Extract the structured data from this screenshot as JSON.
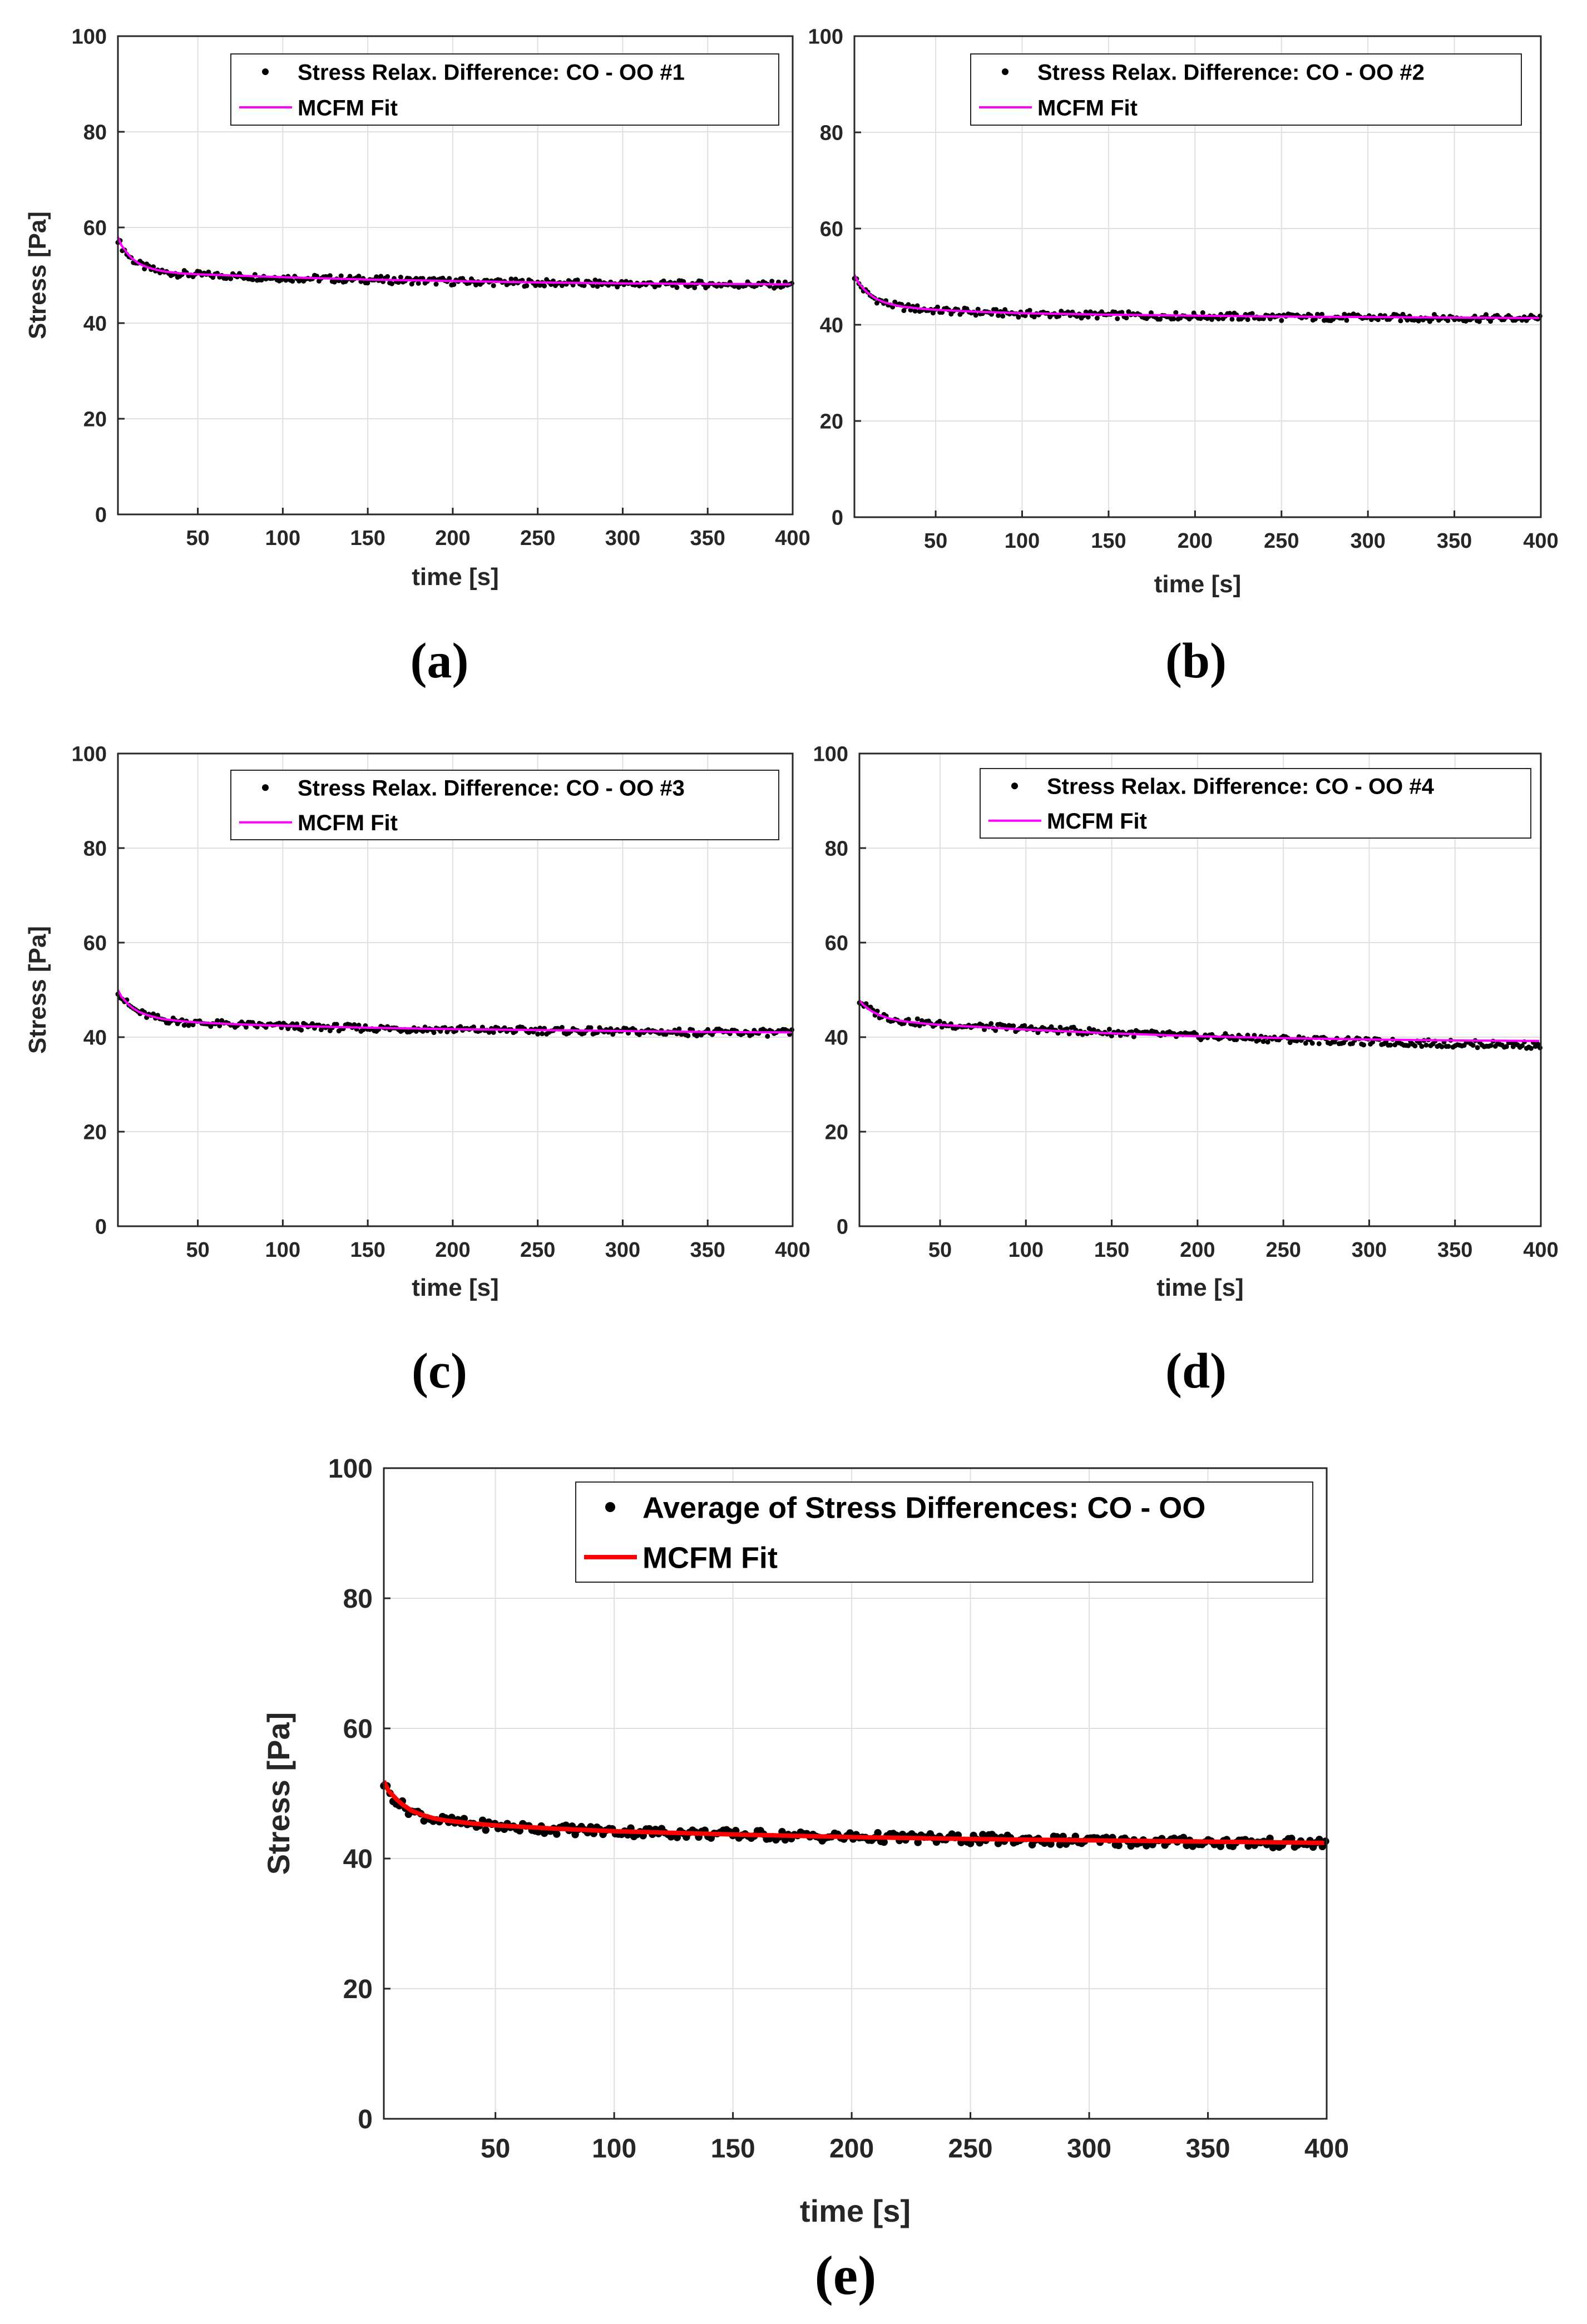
{
  "chart_data": [
    {
      "type": "scatter",
      "panel_label": "(a)",
      "xlabel": "time [s]",
      "ylabel": "Stress [Pa]",
      "xlim": [
        3,
        400
      ],
      "ylim": [
        0,
        100
      ],
      "xticks": [
        50,
        100,
        150,
        200,
        250,
        300,
        350,
        400
      ],
      "yticks": [
        0,
        20,
        40,
        60,
        80,
        100
      ],
      "grid": true,
      "legend_position": "top-right",
      "series": [
        {
          "name": "Stress Relax. Difference: CO - OO #1",
          "kind": "points",
          "color": "#000000",
          "x": [
            3,
            5,
            10,
            15,
            20,
            25,
            30,
            40,
            50,
            75,
            100,
            150,
            200,
            250,
            300,
            350,
            400
          ],
          "y": [
            57.6,
            56.1,
            53.7,
            52.4,
            51.6,
            51.0,
            50.6,
            50.3,
            50.1,
            49.8,
            49.5,
            49.1,
            48.7,
            48.4,
            48.2,
            48.1,
            48.0
          ]
        },
        {
          "name": "MCFM Fit",
          "kind": "line",
          "color": "#ff00ff",
          "x": [
            3,
            5,
            10,
            15,
            20,
            25,
            30,
            40,
            50,
            75,
            100,
            150,
            200,
            250,
            300,
            350,
            400
          ],
          "y": [
            58.0,
            56.3,
            53.9,
            52.5,
            51.7,
            51.2,
            50.8,
            50.4,
            50.2,
            49.9,
            49.6,
            49.1,
            48.8,
            48.5,
            48.3,
            48.2,
            48.1
          ]
        }
      ]
    },
    {
      "type": "scatter",
      "panel_label": "(b)",
      "xlabel": "time [s]",
      "ylabel": "",
      "xlim": [
        3,
        400
      ],
      "ylim": [
        0,
        100
      ],
      "xticks": [
        50,
        100,
        150,
        200,
        250,
        300,
        350,
        400
      ],
      "yticks": [
        0,
        20,
        40,
        60,
        80,
        100
      ],
      "grid": true,
      "legend_position": "top-right",
      "series": [
        {
          "name": "Stress Relax. Difference: CO - OO #2",
          "kind": "points",
          "color": "#000000",
          "x": [
            3,
            5,
            10,
            15,
            20,
            25,
            30,
            40,
            50,
            75,
            100,
            150,
            200,
            250,
            300,
            350,
            400
          ],
          "y": [
            50.1,
            48.7,
            46.6,
            45.4,
            44.6,
            44.1,
            43.7,
            43.3,
            43.0,
            42.6,
            42.3,
            42.0,
            41.8,
            41.6,
            41.5,
            41.4,
            41.3
          ]
        },
        {
          "name": "MCFM Fit",
          "kind": "line",
          "color": "#ff00ff",
          "x": [
            3,
            5,
            10,
            15,
            20,
            25,
            30,
            40,
            50,
            75,
            100,
            150,
            200,
            250,
            300,
            350,
            400
          ],
          "y": [
            50.4,
            48.9,
            46.8,
            45.5,
            44.7,
            44.2,
            43.8,
            43.4,
            43.1,
            42.7,
            42.4,
            42.1,
            41.9,
            41.7,
            41.6,
            41.5,
            41.4
          ]
        }
      ]
    },
    {
      "type": "scatter",
      "panel_label": "(c)",
      "xlabel": "time [s]",
      "ylabel": "Stress [Pa]",
      "xlim": [
        3,
        400
      ],
      "ylim": [
        0,
        100
      ],
      "xticks": [
        50,
        100,
        150,
        200,
        250,
        300,
        350,
        400
      ],
      "yticks": [
        0,
        20,
        40,
        60,
        80,
        100
      ],
      "grid": true,
      "legend_position": "top-right",
      "series": [
        {
          "name": "Stress Relax. Difference: CO - OO #3",
          "kind": "points",
          "color": "#000000",
          "x": [
            3,
            5,
            10,
            15,
            20,
            25,
            30,
            40,
            50,
            75,
            100,
            150,
            200,
            250,
            300,
            350,
            400
          ],
          "y": [
            49.8,
            48.5,
            46.5,
            45.3,
            44.6,
            44.1,
            43.7,
            43.3,
            43.0,
            42.6,
            42.3,
            41.9,
            41.6,
            41.4,
            41.2,
            41.0,
            40.9
          ]
        },
        {
          "name": "MCFM Fit",
          "kind": "line",
          "color": "#ff00ff",
          "x": [
            3,
            5,
            10,
            15,
            20,
            25,
            30,
            40,
            50,
            75,
            100,
            150,
            200,
            250,
            300,
            350,
            400
          ],
          "y": [
            50.0,
            48.6,
            46.6,
            45.4,
            44.7,
            44.2,
            43.8,
            43.4,
            43.1,
            42.7,
            42.4,
            42.0,
            41.7,
            41.5,
            41.3,
            41.1,
            41.0
          ]
        }
      ]
    },
    {
      "type": "scatter",
      "panel_label": "(d)",
      "xlabel": "time [s]",
      "ylabel": "",
      "xlim": [
        3,
        400
      ],
      "ylim": [
        0,
        100
      ],
      "xticks": [
        50,
        100,
        150,
        200,
        250,
        300,
        350,
        400
      ],
      "yticks": [
        0,
        20,
        40,
        60,
        80,
        100
      ],
      "grid": true,
      "legend_position": "top-right",
      "series": [
        {
          "name": "Stress Relax. Difference: CO - OO #4",
          "kind": "points",
          "color": "#000000",
          "x": [
            3,
            5,
            10,
            15,
            20,
            25,
            30,
            40,
            50,
            75,
            100,
            150,
            200,
            250,
            300,
            350,
            400
          ],
          "y": [
            47.6,
            47.0,
            45.6,
            44.7,
            44.1,
            43.7,
            43.4,
            43.0,
            42.7,
            42.2,
            41.8,
            41.0,
            40.2,
            39.6,
            39.0,
            38.6,
            38.3
          ]
        },
        {
          "name": "MCFM Fit",
          "kind": "line",
          "color": "#ff00ff",
          "x": [
            3,
            5,
            10,
            15,
            20,
            25,
            30,
            40,
            50,
            75,
            100,
            150,
            200,
            250,
            300,
            350,
            400
          ],
          "y": [
            47.8,
            46.9,
            45.5,
            44.6,
            44.0,
            43.6,
            43.3,
            42.9,
            42.6,
            42.1,
            41.6,
            40.8,
            40.2,
            39.8,
            39.5,
            39.3,
            39.2
          ]
        }
      ]
    },
    {
      "type": "scatter",
      "panel_label": "(e)",
      "xlabel": "time [s]",
      "ylabel": "Stress [Pa]",
      "xlim": [
        3,
        400
      ],
      "ylim": [
        0,
        100
      ],
      "xticks": [
        50,
        100,
        150,
        200,
        250,
        300,
        350,
        400
      ],
      "yticks": [
        0,
        20,
        40,
        60,
        80,
        100
      ],
      "grid": true,
      "legend_position": "top-right",
      "series": [
        {
          "name": "Average of Stress Differences: CO - OO",
          "kind": "points",
          "color": "#000000",
          "x": [
            3,
            5,
            10,
            15,
            20,
            25,
            30,
            40,
            50,
            75,
            100,
            150,
            200,
            250,
            300,
            350,
            400
          ],
          "y": [
            51.6,
            50.2,
            48.3,
            47.2,
            46.5,
            46.0,
            45.7,
            45.3,
            45.0,
            44.5,
            44.2,
            43.7,
            43.3,
            43.0,
            42.7,
            42.5,
            42.3
          ]
        },
        {
          "name": "MCFM Fit",
          "kind": "line",
          "color": "#ff0000",
          "x": [
            3,
            5,
            10,
            15,
            20,
            25,
            30,
            40,
            50,
            75,
            100,
            150,
            200,
            250,
            300,
            350,
            400
          ],
          "y": [
            51.9,
            50.4,
            48.5,
            47.3,
            46.6,
            46.1,
            45.8,
            45.4,
            45.1,
            44.6,
            44.2,
            43.7,
            43.3,
            43.0,
            42.8,
            42.6,
            42.4
          ]
        }
      ]
    }
  ]
}
